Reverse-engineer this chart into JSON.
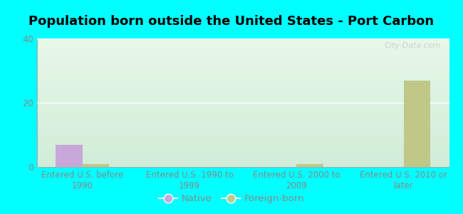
{
  "title": "Population born outside the United States - Port Carbon",
  "categories": [
    "Entered U.S. before\n1990",
    "Entered U.S. 1990 to\n1999",
    "Entered U.S. 2000 to\n2009",
    "Entered U.S. 2010 or\nlater"
  ],
  "native_values": [
    7,
    0,
    0,
    0
  ],
  "foreign_values": [
    1,
    0,
    1,
    27
  ],
  "native_color": "#c8a8d8",
  "foreign_color": "#c0c888",
  "bg_top_color": "#e8f8e8",
  "bg_bottom_color": "#d0ecd8",
  "outer_bg": "#00ffff",
  "ylim": [
    0,
    40
  ],
  "yticks": [
    0,
    20,
    40
  ],
  "bar_width": 0.25,
  "watermark": "City-Data.com",
  "legend_native": "Native",
  "legend_foreign": "Foreign-born",
  "title_fontsize": 13,
  "tick_color": "#888888",
  "label_color": "#888888",
  "grid_color": "#ffffff"
}
